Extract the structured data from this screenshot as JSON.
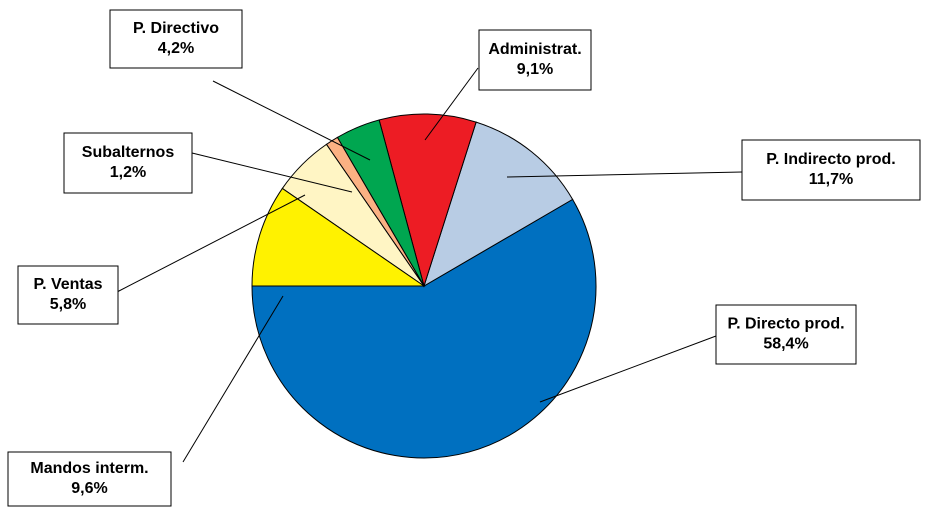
{
  "chart_data": {
    "type": "pie",
    "categories": [
      "P. Directo prod.",
      "P. Indirecto prod.",
      "Administrat.",
      "P. Directivo",
      "Subalternos",
      "P. Ventas",
      "Mandos interm."
    ],
    "values": [
      58.4,
      11.7,
      9.1,
      4.2,
      1.2,
      5.8,
      9.6
    ],
    "value_labels": [
      "58,4%",
      "11,7%",
      "9,1%",
      "4,2%",
      "1,2%",
      "5,8%",
      "9,6%"
    ],
    "colors": [
      "#0070c0",
      "#b8cce4",
      "#ed1c24",
      "#00a650",
      "#fbb183",
      "#fff5c4",
      "#fff200"
    ]
  }
}
